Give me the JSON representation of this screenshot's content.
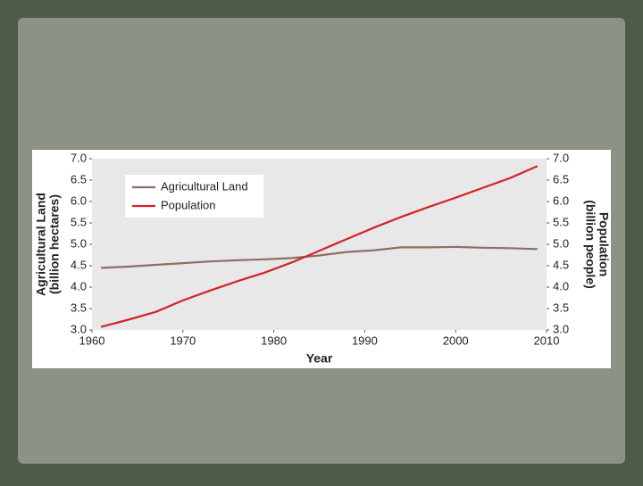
{
  "chart_data": {
    "type": "line",
    "x": [
      1961,
      1964,
      1967,
      1970,
      1973,
      1976,
      1979,
      1982,
      1985,
      1988,
      1991,
      1994,
      1997,
      2000,
      2003,
      2006,
      2009
    ],
    "series": [
      {
        "name": "Agricultural Land",
        "color": "#8c6e64",
        "values": [
          4.45,
          4.48,
          4.52,
          4.56,
          4.6,
          4.63,
          4.65,
          4.68,
          4.74,
          4.82,
          4.86,
          4.93,
          4.93,
          4.94,
          4.92,
          4.91,
          4.89
        ]
      },
      {
        "name": "Population",
        "color": "#d2232a",
        "axis": "y2",
        "values": [
          3.07,
          3.24,
          3.42,
          3.69,
          3.92,
          4.14,
          4.34,
          4.58,
          4.85,
          5.12,
          5.39,
          5.64,
          5.87,
          6.09,
          6.32,
          6.55,
          6.83
        ]
      }
    ],
    "xlabel": "Year",
    "ylabel": [
      "Agricultural Land",
      "(billion hectares)"
    ],
    "y2label": [
      "Population",
      "(billion people)"
    ],
    "xlim": [
      1960,
      2010
    ],
    "xticks": [
      1960,
      1970,
      1980,
      1990,
      2000,
      2010
    ],
    "ylim": [
      3,
      7
    ],
    "yticks": [
      {
        "value": 3,
        "label": "3.0"
      },
      {
        "value": 3.5,
        "label": "3.5"
      },
      {
        "value": 4,
        "label": "4.0"
      },
      {
        "value": 4.5,
        "label": "4.5"
      },
      {
        "value": 5,
        "label": "5.0"
      },
      {
        "value": 5.5,
        "label": "5.5"
      },
      {
        "value": 6,
        "label": "6.0"
      },
      {
        "value": 6.5,
        "label": "6.5"
      },
      {
        "value": 7,
        "label": "7.0"
      }
    ],
    "y2lim": [
      3,
      7
    ],
    "y2ticks": [
      {
        "value": 3,
        "label": "3.0"
      },
      {
        "value": 3.5,
        "label": "3.5"
      },
      {
        "value": 4,
        "label": "4.0"
      },
      {
        "value": 4.5,
        "label": "4.5"
      },
      {
        "value": 5,
        "label": "5.0"
      },
      {
        "value": 5.5,
        "label": "5.5"
      },
      {
        "value": 6,
        "label": "6.0"
      },
      {
        "value": 6.5,
        "label": "6.5"
      },
      {
        "value": 7,
        "label": "7.0"
      }
    ],
    "grid": false,
    "legend": "upper left"
  }
}
